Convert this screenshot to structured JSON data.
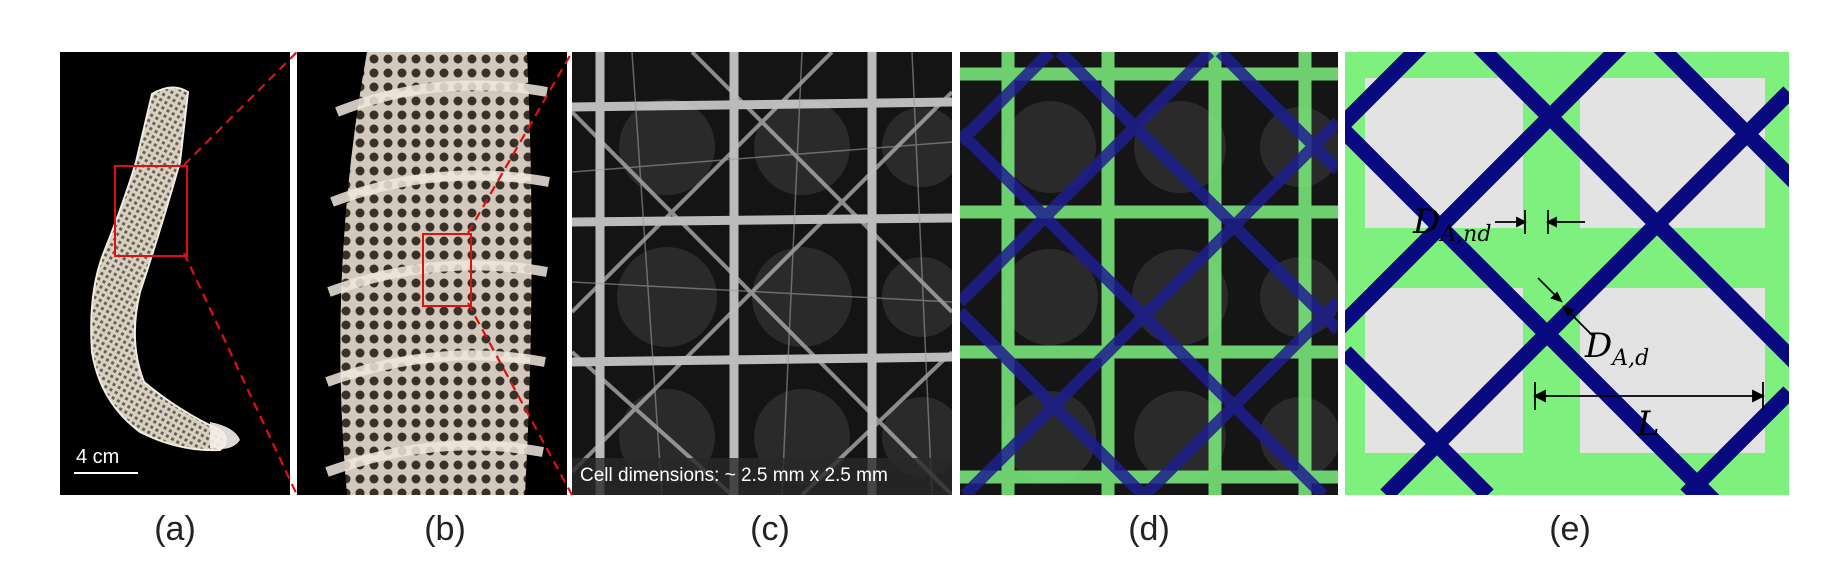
{
  "figure": {
    "panels": [
      {
        "id": "a",
        "label": "(a)",
        "scale_bar": "4 cm"
      },
      {
        "id": "b",
        "label": "(b)"
      },
      {
        "id": "c",
        "label": "(c)",
        "caption": "Cell dimensions: ~ 2.5 mm x 2.5 mm"
      },
      {
        "id": "d",
        "label": "(d)"
      },
      {
        "id": "e",
        "label": "(e)",
        "annotations": {
          "d_a_nd": {
            "main": "D",
            "sub": "A,nd"
          },
          "d_a_d": {
            "main": "D",
            "sub": "A,d"
          },
          "l": "L"
        }
      }
    ]
  },
  "colors": {
    "background_photo": "#000000",
    "skeleton": "#e8e2d8",
    "highlight_box": "#e01010",
    "diagonal_struts": "#0a0a80",
    "orthogonal_struts": "#7df07d",
    "cell_fill": "#e3e3e3"
  }
}
